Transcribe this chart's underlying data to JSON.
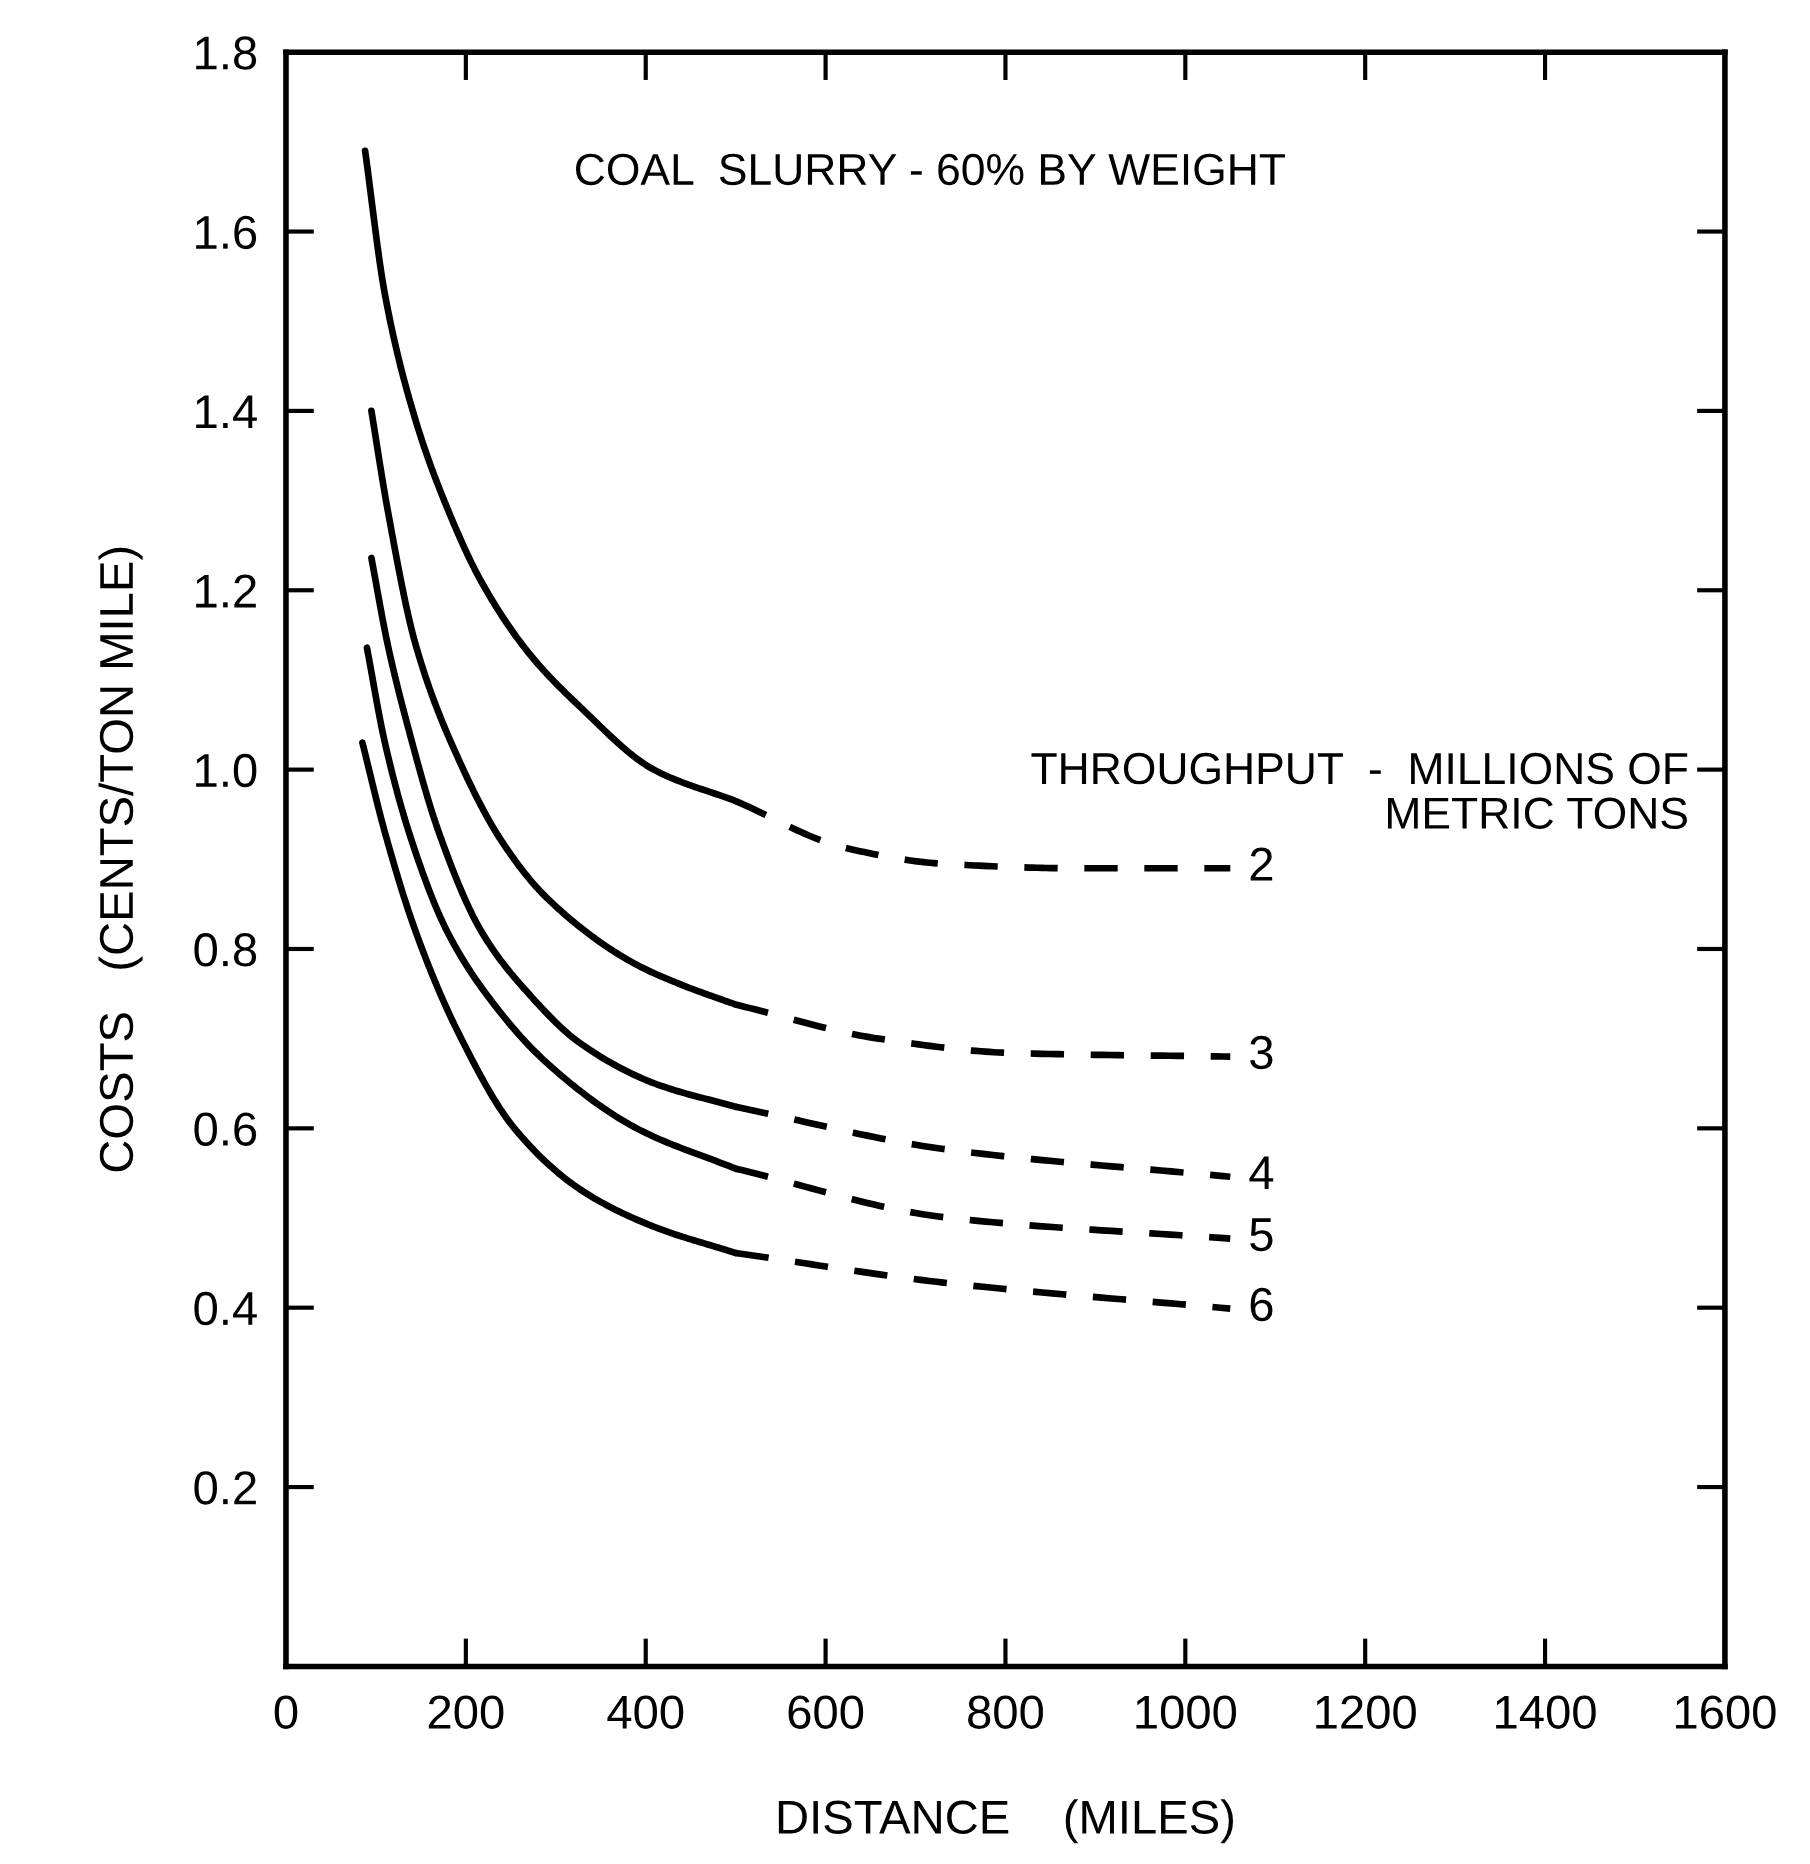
{
  "chart_data": {
    "type": "line",
    "xlabel": "DISTANCE    (MILES)",
    "ylabel": "COSTS   (CENTS/TON MILE)",
    "annotations": [
      "COAL  SLURRY - 60% BY WEIGHT",
      "THROUGHPUT  -  MILLIONS OF\nMETRIC TONS"
    ],
    "xlim": [
      0,
      1600
    ],
    "xticks": [
      0,
      200,
      400,
      600,
      800,
      1000,
      1200,
      1400,
      1600
    ],
    "ylim": [
      0,
      1.8
    ],
    "yticks": [
      0.2,
      0.4,
      0.6,
      0.8,
      {
        "value": 1,
        "label": "1.0"
      },
      1.2,
      1.4,
      1.6,
      1.8
    ],
    "grid": false,
    "legend": false,
    "series": [
      {
        "color": "#000000",
        "line_style": "solid",
        "x": [
          88,
          110,
          144,
          180,
          217,
          270,
          327,
          409,
          500
        ],
        "values": [
          1.69,
          1.53,
          1.39,
          1.29,
          1.21,
          1.13,
          1.07,
          1.0,
          0.965
        ]
      },
      {
        "name": "2",
        "color": "#000000",
        "line_style": "dashed",
        "x": [
          500,
          621,
          731,
          880,
          1050
        ],
        "values": [
          0.965,
          0.913,
          0.895,
          0.89,
          0.89
        ]
      },
      {
        "color": "#000000",
        "line_style": "solid",
        "x": [
          95,
          113,
          144,
          194,
          240,
          290,
          387,
          440,
          500
        ],
        "values": [
          1.4,
          1.29,
          1.14,
          1.007,
          0.92,
          0.857,
          0.784,
          0.76,
          0.738
        ]
      },
      {
        "name": "3",
        "color": "#000000",
        "line_style": "dashed",
        "x": [
          500,
          659,
          807,
          1050
        ],
        "values": [
          0.738,
          0.7,
          0.684,
          0.68
        ]
      },
      {
        "color": "#000000",
        "line_style": "solid",
        "x": [
          95,
          113,
          135,
          170,
          217,
          270,
          327,
          410,
          500
        ],
        "values": [
          1.236,
          1.14,
          1.05,
          0.93,
          0.82,
          0.75,
          0.695,
          0.65,
          0.624
        ]
      },
      {
        "name": "4",
        "color": "#000000",
        "line_style": "dashed",
        "x": [
          500,
          731,
          1050
        ],
        "values": [
          0.624,
          0.577,
          0.546
        ]
      },
      {
        "color": "#000000",
        "line_style": "solid",
        "x": [
          90,
          110,
          140,
          179,
          230,
          290,
          390,
          500
        ],
        "values": [
          1.136,
          1.03,
          0.92,
          0.82,
          0.74,
          0.673,
          0.6,
          0.555
        ]
      },
      {
        "name": "5",
        "color": "#000000",
        "line_style": "dashed",
        "x": [
          500,
          731,
          1050
        ],
        "values": [
          0.555,
          0.501,
          0.477
        ]
      },
      {
        "color": "#000000",
        "line_style": "solid",
        "x": [
          85,
          110,
          144,
          190,
          254,
          330,
          410,
          500
        ],
        "values": [
          1.03,
          0.93,
          0.82,
          0.71,
          0.6,
          0.53,
          0.49,
          0.461
        ]
      },
      {
        "name": "6",
        "color": "#000000",
        "line_style": "dashed",
        "x": [
          500,
          731,
          1050
        ],
        "values": [
          0.461,
          0.428,
          0.399
        ]
      }
    ]
  }
}
